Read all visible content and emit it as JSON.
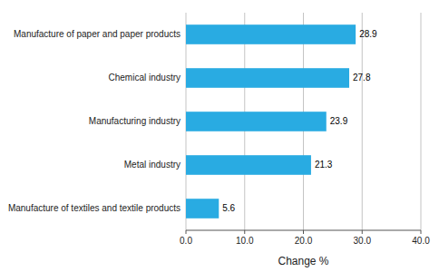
{
  "chart_data": {
    "type": "bar",
    "orientation": "horizontal",
    "categories": [
      "Manufacture of textiles and textile products",
      "Metal industry",
      "Manufacturing industry",
      "Chemical industry",
      "Manufacture of paper and paper products"
    ],
    "values": [
      5.6,
      21.3,
      23.9,
      27.8,
      28.9
    ],
    "color": "#29ABE2",
    "xlabel": "Change %",
    "xlim": [
      0,
      40
    ],
    "xticks": [
      {
        "value": 0.0,
        "label": "0.0"
      },
      {
        "value": 10.0,
        "label": "10.0"
      },
      {
        "value": 20.0,
        "label": "20.0"
      },
      {
        "value": 30.0,
        "label": "30.0"
      },
      {
        "value": 40.0,
        "label": "40.0"
      }
    ],
    "grid": true,
    "data_labels": true
  }
}
